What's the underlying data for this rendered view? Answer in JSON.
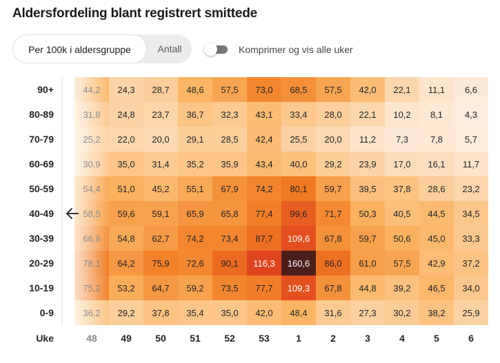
{
  "title": "Aldersfordeling blant registrert smittede",
  "controls": {
    "mode_options": [
      "Per 100k i aldersgruppe",
      "Antall"
    ],
    "selected_mode": "Per 100k i aldersgruppe",
    "toggle_label": "Komprimer og vis alle uker",
    "toggle_on": false
  },
  "colors": {
    "low": "#fdf3ea",
    "mid": "#fbb360",
    "high1": "#f07a22",
    "high2": "#e0431f",
    "max": "#4a1f1a"
  },
  "chart_data": {
    "type": "heatmap",
    "title": "Aldersfordeling blant registrert smittede",
    "xlabel": "Uke",
    "ylabel": "",
    "x": [
      "48",
      "49",
      "50",
      "51",
      "52",
      "53",
      "1",
      "2",
      "3",
      "4",
      "5",
      "6"
    ],
    "y": [
      "90+",
      "80-89",
      "70-79",
      "60-69",
      "50-59",
      "40-49",
      "30-39",
      "20-29",
      "10-19",
      "0-9"
    ],
    "values": [
      [
        "44,2",
        "24,3",
        "28,7",
        "48,6",
        "57,5",
        "73,0",
        "68,5",
        "57,5",
        "42,0",
        "22,1",
        "11,1",
        "6,6"
      ],
      [
        "31,8",
        "24,8",
        "23,7",
        "36,7",
        "32,3",
        "43,1",
        "33,4",
        "28,0",
        "22,1",
        "10,2",
        "8,1",
        "4,3"
      ],
      [
        "25,2",
        "22,0",
        "20,0",
        "29,1",
        "28,5",
        "42,4",
        "25,5",
        "20,0",
        "11,2",
        "7,3",
        "7,8",
        "5,7"
      ],
      [
        "30,9",
        "35,0",
        "31,4",
        "35,2",
        "35,9",
        "43,4",
        "40,0",
        "29,2",
        "23,9",
        "17,0",
        "16,1",
        "11,7"
      ],
      [
        "54,4",
        "51,0",
        "45,2",
        "55,1",
        "67,9",
        "74,2",
        "80,1",
        "59,7",
        "39,5",
        "37,8",
        "28,6",
        "23,2"
      ],
      [
        "58,5",
        "59,6",
        "59,1",
        "65,9",
        "65,8",
        "77,4",
        "99,6",
        "71,7",
        "50,3",
        "40,5",
        "44,5",
        "34,5"
      ],
      [
        "66,9",
        "54,8",
        "62,7",
        "74,2",
        "73,4",
        "87,7",
        "109,6",
        "67,8",
        "59,7",
        "50,6",
        "45,0",
        "33,3"
      ],
      [
        "78,1",
        "64,2",
        "75,9",
        "72,6",
        "90,1",
        "116,3",
        "160,6",
        "86,0",
        "61,0",
        "57,5",
        "42,9",
        "37,2"
      ],
      [
        "75,2",
        "53,2",
        "64,7",
        "59,2",
        "73,5",
        "77,7",
        "109,3",
        "67,8",
        "44,8",
        "39,2",
        "46,5",
        "34,0"
      ],
      [
        "36,2",
        "29,2",
        "37,8",
        "35,4",
        "35,0",
        "42,0",
        "48,4",
        "31,6",
        "27,3",
        "30,2",
        "38,2",
        "25,9"
      ]
    ]
  }
}
